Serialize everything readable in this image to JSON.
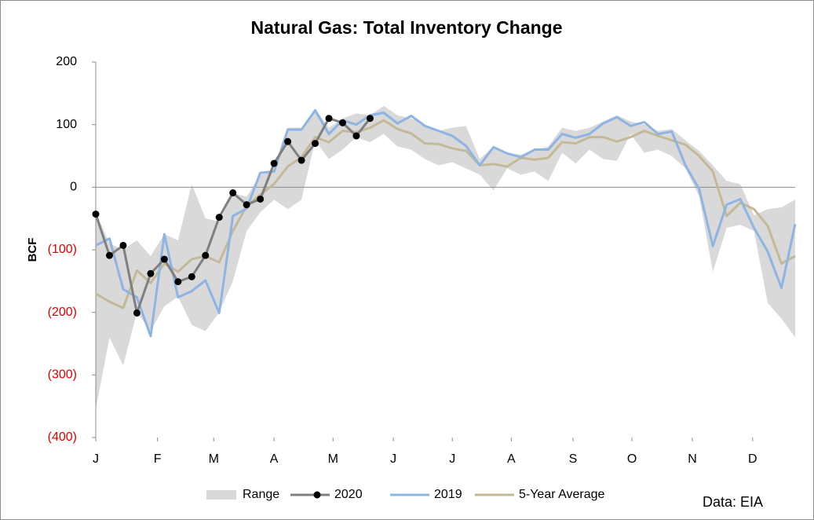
{
  "chart_data": {
    "type": "line",
    "title": "Natural Gas: Total Inventory Change",
    "y_label": "BCF",
    "annotation": "Data: EIA",
    "x": [
      1,
      2,
      3,
      4,
      5,
      6,
      7,
      8,
      9,
      10,
      11,
      12,
      13,
      14,
      15,
      16,
      17,
      18,
      19,
      20,
      21,
      22,
      23,
      24,
      25,
      26,
      27,
      28,
      29,
      30,
      31,
      32,
      33,
      34,
      35,
      36,
      37,
      38,
      39,
      40,
      41,
      42,
      43,
      44,
      45,
      46,
      47,
      48,
      49,
      50,
      51,
      52
    ],
    "xlim": [
      1,
      52
    ],
    "xticks": [
      {
        "value": 1,
        "label": "J"
      },
      {
        "value": 5.5,
        "label": "F"
      },
      {
        "value": 9.6,
        "label": "M"
      },
      {
        "value": 14,
        "label": "A"
      },
      {
        "value": 18.3,
        "label": "M"
      },
      {
        "value": 22.7,
        "label": "J"
      },
      {
        "value": 27,
        "label": "J"
      },
      {
        "value": 31.3,
        "label": "A"
      },
      {
        "value": 35.8,
        "label": "S"
      },
      {
        "value": 40.1,
        "label": "O"
      },
      {
        "value": 44.5,
        "label": "N"
      },
      {
        "value": 48.9,
        "label": "D"
      }
    ],
    "ylim": [
      -400,
      200
    ],
    "yticks": [
      {
        "value": -400,
        "label": "(400)"
      },
      {
        "value": -300,
        "label": "(300)"
      },
      {
        "value": -200,
        "label": "(200)"
      },
      {
        "value": -100,
        "label": "(100)"
      },
      0,
      100,
      200
    ],
    "negative_tick_color": "#e00000",
    "grid": false,
    "legend": "bottom",
    "series": [
      {
        "name": "Range",
        "kind": "band",
        "color": "#d9d9d9",
        "upper": [
          -40,
          -90,
          -100,
          -85,
          -110,
          -75,
          -85,
          5,
          -50,
          -55,
          -10,
          -15,
          20,
          25,
          95,
          95,
          125,
          95,
          110,
          118,
          115,
          130,
          115,
          110,
          100,
          90,
          95,
          98,
          45,
          65,
          55,
          52,
          60,
          65,
          95,
          90,
          95,
          105,
          115,
          105,
          100,
          90,
          93,
          75,
          58,
          35,
          10,
          5,
          -45,
          -35,
          -32,
          -20
        ],
        "lower": [
          -355,
          -240,
          -285,
          -200,
          -230,
          -190,
          -175,
          -220,
          -230,
          -200,
          -150,
          -70,
          -40,
          -20,
          -35,
          -20,
          75,
          45,
          60,
          80,
          72,
          85,
          65,
          60,
          45,
          35,
          40,
          30,
          20,
          -5,
          30,
          20,
          25,
          10,
          55,
          38,
          60,
          45,
          42,
          85,
          55,
          60,
          50,
          30,
          -15,
          -135,
          -65,
          -60,
          -70,
          -185,
          -210,
          -240
        ]
      },
      {
        "name": "2020",
        "color": "#7f7f7f",
        "marker": "#000000",
        "values": [
          -43,
          -109,
          -93,
          -201,
          -138,
          -115,
          -151,
          -143,
          -109,
          -48,
          -9,
          -28,
          -19,
          38,
          73,
          43,
          70,
          110,
          103,
          82,
          110,
          null,
          null,
          null,
          null,
          null,
          null,
          null,
          null,
          null,
          null,
          null,
          null,
          null,
          null,
          null,
          null,
          null,
          null,
          null,
          null,
          null,
          null,
          null,
          null,
          null,
          null,
          null,
          null,
          null,
          null,
          null
        ]
      },
      {
        "name": "2019",
        "color": "#8db4e2",
        "values": [
          -93,
          -82,
          -163,
          -176,
          -238,
          -75,
          -176,
          -166,
          -149,
          -201,
          -46,
          -34,
          23,
          25,
          92,
          92,
          123,
          85,
          107,
          100,
          115,
          119,
          102,
          114,
          98,
          90,
          82,
          66,
          35,
          64,
          54,
          48,
          60,
          60,
          85,
          79,
          85,
          102,
          112,
          98,
          104,
          85,
          89,
          35,
          -3,
          -94,
          -28,
          -19,
          -65,
          -103,
          -161,
          -59
        ]
      },
      {
        "name": "5-Year Average",
        "color": "#c4b996",
        "values": [
          -170,
          -183,
          -193,
          -133,
          -153,
          -122,
          -135,
          -115,
          -110,
          -120,
          -70,
          -30,
          -12,
          5,
          33,
          48,
          80,
          72,
          90,
          88,
          95,
          107,
          93,
          86,
          70,
          69,
          62,
          58,
          35,
          37,
          33,
          47,
          44,
          47,
          72,
          70,
          80,
          80,
          73,
          80,
          90,
          82,
          75,
          68,
          50,
          25,
          -46,
          -25,
          -35,
          -62,
          -122,
          -110
        ]
      }
    ]
  }
}
